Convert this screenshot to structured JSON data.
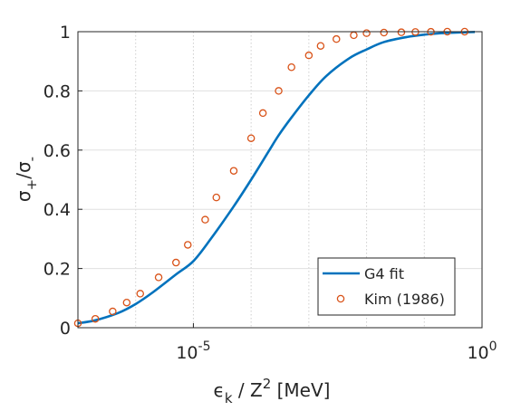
{
  "chart_data": {
    "type": "line",
    "xscale": "log",
    "xlim": [
      1e-07,
      1.0
    ],
    "ylim": [
      0,
      1
    ],
    "xticks": [
      {
        "value": 1e-05,
        "label_base": "10",
        "label_exp": "-5"
      },
      {
        "value": 1.0,
        "label_base": "10",
        "label_exp": "0"
      }
    ],
    "xminor_grid": [
      1e-06,
      1e-05,
      0.0001,
      0.001,
      0.01,
      0.1
    ],
    "yticks": [
      {
        "value": 0,
        "label": "0"
      },
      {
        "value": 0.2,
        "label": "0.2"
      },
      {
        "value": 0.4,
        "label": "0.4"
      },
      {
        "value": 0.6,
        "label": "0.6"
      },
      {
        "value": 0.8,
        "label": "0.8"
      },
      {
        "value": 1,
        "label": "1"
      }
    ],
    "grid": true,
    "xlabel": {
      "epsilon": "ϵ",
      "eps_sub": "k",
      "mid": " / Z",
      "sup": "2",
      "tail": " [MeV]"
    },
    "ylabel": {
      "sig1": "σ",
      "sub1": "+",
      "slash": "/",
      "sig2": "σ",
      "sub2": "-"
    },
    "legend_position": "bottom-right",
    "series": [
      {
        "name": "G4 fit",
        "kind": "line",
        "color": "#0072bd",
        "x": [
          1e-07,
          2e-07,
          5e-07,
          1e-06,
          2e-06,
          5e-06,
          1e-05,
          2e-05,
          5e-05,
          0.0001,
          0.0002,
          0.0003,
          0.0005,
          0.001,
          0.002,
          0.005,
          0.01,
          0.02,
          0.05,
          0.1,
          0.2,
          0.5,
          0.75
        ],
        "y": [
          0.015,
          0.025,
          0.05,
          0.08,
          0.12,
          0.18,
          0.225,
          0.3,
          0.41,
          0.5,
          0.595,
          0.65,
          0.71,
          0.785,
          0.85,
          0.91,
          0.94,
          0.965,
          0.982,
          0.99,
          0.995,
          0.998,
          0.999
        ]
      },
      {
        "name": "Kim (1986)",
        "kind": "markers",
        "marker": "circle",
        "color": "#d95319",
        "x": [
          1e-07,
          2e-07,
          4e-07,
          7e-07,
          1.2e-06,
          2.5e-06,
          5e-06,
          8e-06,
          1.6e-05,
          2.5e-05,
          5e-05,
          0.0001,
          0.00016,
          0.0003,
          0.0005,
          0.001,
          0.0016,
          0.003,
          0.006,
          0.01,
          0.02,
          0.04,
          0.07,
          0.13,
          0.25,
          0.5
        ],
        "y": [
          0.015,
          0.03,
          0.055,
          0.085,
          0.115,
          0.17,
          0.22,
          0.28,
          0.365,
          0.44,
          0.53,
          0.64,
          0.725,
          0.8,
          0.88,
          0.92,
          0.952,
          0.975,
          0.988,
          0.995,
          0.997,
          0.998,
          0.999,
          0.9995,
          1.0,
          1.0
        ]
      }
    ]
  }
}
